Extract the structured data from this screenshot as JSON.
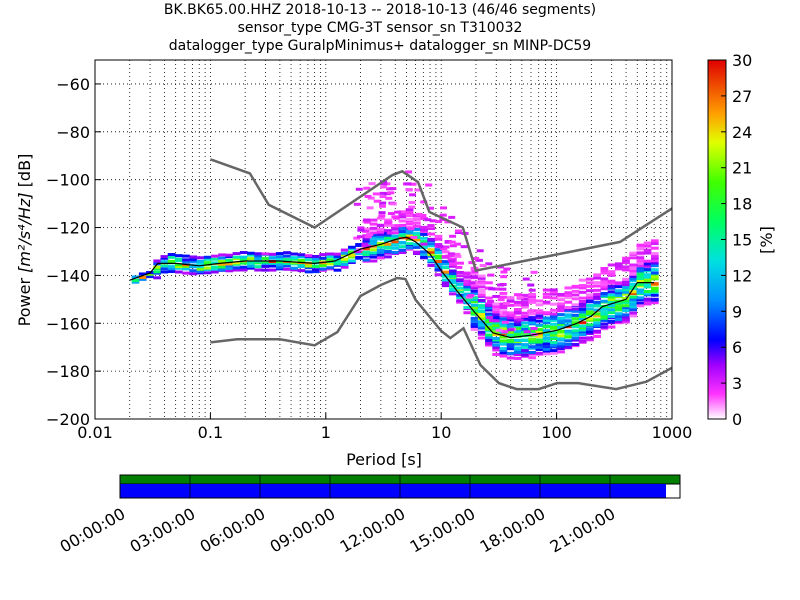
{
  "title": {
    "line1": "BK.BK65.00.HHZ   2018-10-13 -- 2018-10-13  (46/46 segments)",
    "line2": "sensor_type CMG-3T sensor_sn T310032",
    "line3": "datalogger_type GuralpMinimus+ datalogger_sn MINP-DC59"
  },
  "chart_data": {
    "type": "heatmap",
    "xlabel": "Period [s]",
    "ylabel_prefix": "Power ",
    "ylabel_units": "[m²/s⁴/Hz]",
    "ylabel_suffix": " [dB]",
    "xscale": "log",
    "xlim": [
      0.01,
      1000
    ],
    "ylim": [
      -200,
      -50
    ],
    "x_ticks": [
      0.01,
      0.1,
      1,
      10,
      100,
      1000
    ],
    "x_tick_labels": [
      "0.01",
      "0.1",
      "1",
      "10",
      "100",
      "1000"
    ],
    "y_ticks": [
      -200,
      -180,
      -160,
      -140,
      -120,
      -100,
      -80,
      -60
    ],
    "y_tick_labels": [
      "−200",
      "−180",
      "−160",
      "−140",
      "−120",
      "−100",
      "−80",
      "−60"
    ],
    "grid": true,
    "colorbar": {
      "label": "[%]",
      "range": [
        0,
        30
      ],
      "ticks": [
        0,
        3,
        6,
        9,
        12,
        15,
        18,
        21,
        24,
        27,
        30
      ],
      "tick_labels": [
        "0",
        "3",
        "6",
        "9",
        "12",
        "15",
        "18",
        "21",
        "24",
        "27",
        "30"
      ]
    },
    "nhnm": [
      [
        0.1,
        -91.5
      ],
      [
        0.22,
        -97.4
      ],
      [
        0.32,
        -110.5
      ],
      [
        0.8,
        -120.0
      ],
      [
        3.8,
        -98.0
      ],
      [
        4.6,
        -96.5
      ],
      [
        6.3,
        -101.0
      ],
      [
        7.9,
        -113.5
      ],
      [
        15.4,
        -120.0
      ],
      [
        20.0,
        -138.0
      ],
      [
        354.8,
        -126.0
      ],
      [
        1000,
        -112.0
      ]
    ],
    "nlnm": [
      [
        0.1,
        -168.0
      ],
      [
        0.17,
        -166.7
      ],
      [
        0.4,
        -166.7
      ],
      [
        0.8,
        -169.2
      ],
      [
        1.26,
        -163.7
      ],
      [
        2.0,
        -148.6
      ],
      [
        3.0,
        -144.0
      ],
      [
        4.15,
        -141.1
      ],
      [
        4.9,
        -141.5
      ],
      [
        6.0,
        -150.2
      ],
      [
        10.0,
        -163.2
      ],
      [
        12.0,
        -166.2
      ],
      [
        15.6,
        -162.1
      ],
      [
        21.9,
        -177.5
      ],
      [
        31.6,
        -185.0
      ],
      [
        45.0,
        -187.5
      ],
      [
        70.0,
        -187.5
      ],
      [
        101.0,
        -185.0
      ],
      [
        154.0,
        -185.0
      ],
      [
        328.0,
        -187.5
      ],
      [
        600.0,
        -184.4
      ],
      [
        1000.0,
        -178.6
      ]
    ],
    "mode_curve": [
      [
        0.02,
        -142
      ],
      [
        0.03,
        -139
      ],
      [
        0.035,
        -135
      ],
      [
        0.05,
        -135
      ],
      [
        0.08,
        -136
      ],
      [
        0.12,
        -135
      ],
      [
        0.2,
        -134
      ],
      [
        0.4,
        -134
      ],
      [
        0.8,
        -135
      ],
      [
        1.2,
        -134
      ],
      [
        2.0,
        -129
      ],
      [
        3.0,
        -127
      ],
      [
        4.0,
        -125
      ],
      [
        5.0,
        -124
      ],
      [
        6.0,
        -126
      ],
      [
        8.0,
        -131
      ],
      [
        10.0,
        -138
      ],
      [
        14.0,
        -147
      ],
      [
        20.0,
        -156
      ],
      [
        28.0,
        -164
      ],
      [
        40.0,
        -166
      ],
      [
        60.0,
        -165
      ],
      [
        100.0,
        -163
      ],
      [
        150.0,
        -160
      ],
      [
        200.0,
        -157
      ],
      [
        250.0,
        -153
      ],
      [
        400.0,
        -150
      ],
      [
        500.0,
        -143
      ],
      [
        700.0,
        -143
      ]
    ],
    "timeline": {
      "tick_labels": [
        "00:00:00",
        "03:00:00",
        "06:00:00",
        "09:00:00",
        "12:00:00",
        "15:00:00",
        "18:00:00",
        "21:00:00"
      ],
      "coverage_fraction": 0.975,
      "data_color": "#0000ff",
      "available_color": "#007f00"
    },
    "colors": {
      "model_curves": "#666666",
      "mode_curve": "#000000"
    }
  }
}
